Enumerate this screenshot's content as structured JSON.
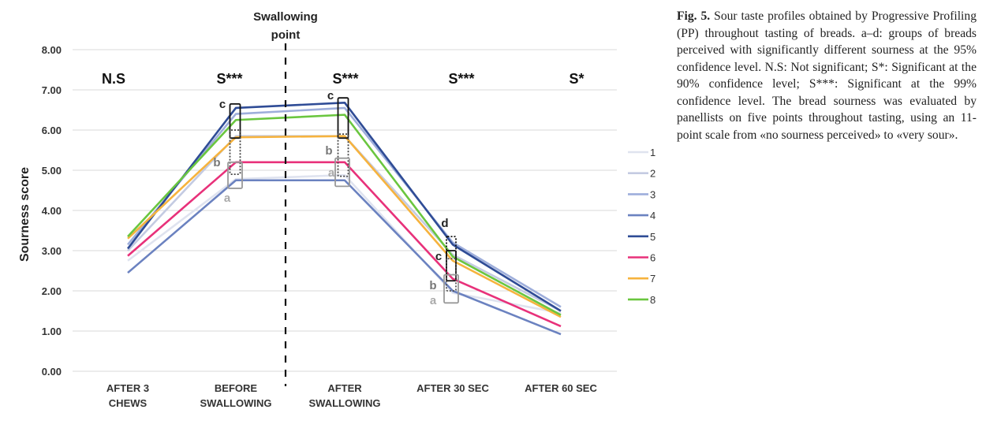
{
  "chart_data": {
    "type": "line",
    "ylabel": "Sourness score",
    "ylim": [
      0,
      8
    ],
    "yticks": [
      "0.00",
      "1.00",
      "2.00",
      "3.00",
      "4.00",
      "5.00",
      "6.00",
      "7.00",
      "8.00"
    ],
    "categories": [
      [
        "AFTER 3",
        "CHEWS"
      ],
      [
        "BEFORE",
        "SWALLOWING"
      ],
      [
        "AFTER",
        "SWALLOWING"
      ],
      [
        "AFTER 30 SEC"
      ],
      [
        "AFTER 60 SEC"
      ]
    ],
    "series": [
      {
        "name": "1",
        "color": "#dfe3ef",
        "values": [
          2.75,
          4.78,
          4.88,
          1.95,
          1.45
        ]
      },
      {
        "name": "2",
        "color": "#c4cbe2",
        "values": [
          3.0,
          5.85,
          5.85,
          2.9,
          1.5
        ]
      },
      {
        "name": "3",
        "color": "#9eaedb",
        "values": [
          3.15,
          6.4,
          6.55,
          3.2,
          1.6
        ]
      },
      {
        "name": "4",
        "color": "#6b82c0",
        "values": [
          2.45,
          4.75,
          4.75,
          2.0,
          0.92
        ]
      },
      {
        "name": "5",
        "color": "#2f4c96",
        "values": [
          3.05,
          6.55,
          6.68,
          3.15,
          1.5
        ]
      },
      {
        "name": "6",
        "color": "#e8317a",
        "values": [
          2.87,
          5.2,
          5.2,
          2.3,
          1.12
        ]
      },
      {
        "name": "7",
        "color": "#f6b33e",
        "values": [
          3.3,
          5.82,
          5.85,
          2.75,
          1.35
        ]
      },
      {
        "name": "8",
        "color": "#6ac63f",
        "values": [
          3.35,
          6.25,
          6.38,
          2.85,
          1.4
        ]
      }
    ],
    "swallowing_label": [
      "Swallowing",
      "point"
    ],
    "significance": [
      "N.S",
      "S***",
      "S***",
      "S***",
      "S*"
    ],
    "group_letters": [
      {
        "text": "c",
        "color": "#222222"
      },
      {
        "text": "b",
        "color": "#777777"
      },
      {
        "text": "a",
        "color": "#aaaaaa"
      },
      {
        "text": "c",
        "color": "#222222"
      },
      {
        "text": "b",
        "color": "#777777"
      },
      {
        "text": "a",
        "color": "#aaaaaa"
      },
      {
        "text": "d",
        "color": "#222222"
      },
      {
        "text": "c",
        "color": "#222222"
      },
      {
        "text": "b",
        "color": "#777777"
      },
      {
        "text": "a",
        "color": "#aaaaaa"
      }
    ]
  },
  "caption": {
    "fig_label": "Fig. 5.",
    "text": " Sour taste profiles obtained by Progressive Profiling (PP) throughout tasting of breads. a–d: groups of breads perceived with significantly different sourness at the 95% confidence level. N.S: Not significant; S*: Significant at the 90% confidence level; S***: Significant at the 99% confidence level. The bread sourness was evaluated by panellists on five points throughout tasting, using an 11-point scale from «no sourness perceived» to «very sour»."
  }
}
